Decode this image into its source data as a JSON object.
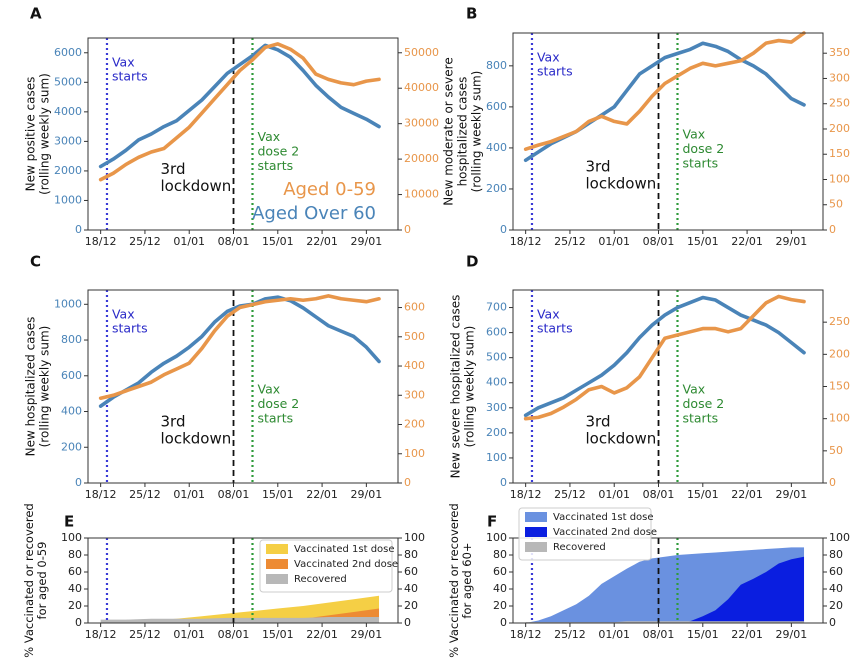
{
  "chart_data": [
    {
      "type": "line",
      "panel_letter": "A",
      "ylabel": "New positive cases\n(rolling weekly sum)",
      "xticks": [
        "18/12",
        "25/12",
        "01/01",
        "08/01",
        "15/01",
        "22/01",
        "29/01"
      ],
      "x_range": [
        -2,
        47
      ],
      "ylim_left": [
        0,
        6500
      ],
      "yticks_left": [
        0,
        1000,
        2000,
        3000,
        4000,
        5000,
        6000
      ],
      "ylim_right": [
        0,
        54167
      ],
      "yticks_right": [
        0,
        10000,
        20000,
        30000,
        40000,
        50000
      ],
      "left_color": "#4a84b8",
      "right_color": "#e8964a",
      "annotations": {
        "vax_label": "Vax\nstarts",
        "vax_x": 1,
        "lockdown_label": "3rd\nlockdown",
        "lockdown_x": 21,
        "dose2_label": "Vax\ndose 2\nstarts",
        "dose2_x": 24
      },
      "legend": {
        "items": [
          {
            "label": "Aged 0-59",
            "color": "#e8964a"
          },
          {
            "label": "Aged Over 60",
            "color": "#4a84b8"
          }
        ]
      },
      "series": [
        {
          "group": "Aged Over 60",
          "axis": "left",
          "x": [
            0,
            2,
            4,
            6,
            8,
            10,
            12,
            14,
            16,
            18,
            20,
            22,
            24,
            26,
            28,
            30,
            32,
            34,
            36,
            38,
            40,
            42,
            44
          ],
          "y": [
            2150,
            2400,
            2700,
            3050,
            3250,
            3500,
            3700,
            4050,
            4400,
            4850,
            5300,
            5600,
            5900,
            6250,
            6100,
            5850,
            5400,
            4900,
            4500,
            4150,
            3950,
            3750,
            3500
          ]
        },
        {
          "group": "Aged 0-59",
          "axis": "right",
          "x": [
            0,
            2,
            4,
            6,
            8,
            10,
            12,
            14,
            16,
            18,
            20,
            22,
            24,
            26,
            28,
            30,
            32,
            34,
            36,
            38,
            40,
            42,
            44
          ],
          "y": [
            14200,
            16000,
            18500,
            20500,
            22000,
            23000,
            26000,
            29000,
            33000,
            37000,
            41000,
            45000,
            48000,
            51500,
            52500,
            51000,
            48500,
            44000,
            42500,
            41500,
            41000,
            42000,
            42500
          ]
        }
      ]
    },
    {
      "type": "line",
      "panel_letter": "B",
      "ylabel": "New moderate or severe\nhospitalized cases\n(rolling weekly sum)",
      "xticks": [
        "18/12",
        "25/12",
        "01/01",
        "08/01",
        "15/01",
        "22/01",
        "29/01"
      ],
      "x_range": [
        -2,
        47
      ],
      "ylim_left": [
        0,
        960
      ],
      "yticks_left": [
        0,
        200,
        400,
        600,
        800
      ],
      "ylim_right": [
        0,
        390
      ],
      "yticks_right": [
        0,
        50,
        100,
        150,
        200,
        250,
        300,
        350
      ],
      "left_color": "#4a84b8",
      "right_color": "#e8964a",
      "annotations": {
        "vax_label": "Vax\nstarts",
        "vax_x": 1,
        "lockdown_label": "3rd\nlockdown",
        "lockdown_x": 21,
        "dose2_label": "Vax\ndose 2\nstarts",
        "dose2_x": 24
      },
      "series": [
        {
          "group": "Aged Over 60",
          "axis": "left",
          "x": [
            0,
            2,
            4,
            6,
            8,
            10,
            12,
            14,
            16,
            18,
            20,
            22,
            24,
            26,
            28,
            30,
            32,
            34,
            36,
            38,
            40,
            42,
            44
          ],
          "y": [
            340,
            380,
            420,
            450,
            480,
            520,
            560,
            600,
            680,
            760,
            800,
            840,
            860,
            880,
            910,
            895,
            870,
            830,
            800,
            760,
            700,
            640,
            610
          ]
        },
        {
          "group": "Aged 0-59",
          "axis": "right",
          "x": [
            0,
            2,
            4,
            6,
            8,
            10,
            12,
            14,
            16,
            18,
            20,
            22,
            24,
            26,
            28,
            30,
            32,
            34,
            36,
            38,
            40,
            42,
            44
          ],
          "y": [
            160,
            168,
            175,
            185,
            195,
            215,
            225,
            215,
            210,
            235,
            265,
            290,
            305,
            320,
            330,
            325,
            330,
            335,
            350,
            370,
            375,
            372,
            390
          ]
        }
      ]
    },
    {
      "type": "line",
      "panel_letter": "C",
      "ylabel": "New hospitalized cases\n(rolling weekly sum)",
      "xticks": [
        "18/12",
        "25/12",
        "01/01",
        "08/01",
        "15/01",
        "22/01",
        "29/01"
      ],
      "x_range": [
        -2,
        47
      ],
      "ylim_left": [
        0,
        1080
      ],
      "yticks_left": [
        0,
        200,
        400,
        600,
        800,
        1000
      ],
      "ylim_right": [
        0,
        660
      ],
      "yticks_right": [
        0,
        100,
        200,
        300,
        400,
        500,
        600
      ],
      "left_color": "#4a84b8",
      "right_color": "#e8964a",
      "annotations": {
        "vax_label": "Vax\nstarts",
        "vax_x": 1,
        "lockdown_label": "3rd\nlockdown",
        "lockdown_x": 21,
        "dose2_label": "Vax\ndose 2\nstarts",
        "dose2_x": 24
      },
      "series": [
        {
          "group": "Aged Over 60",
          "axis": "left",
          "x": [
            0,
            2,
            4,
            6,
            8,
            10,
            12,
            14,
            16,
            18,
            20,
            22,
            24,
            26,
            28,
            30,
            32,
            34,
            36,
            38,
            40,
            42,
            44
          ],
          "y": [
            430,
            480,
            520,
            560,
            620,
            670,
            710,
            760,
            820,
            900,
            960,
            990,
            1000,
            1030,
            1040,
            1020,
            980,
            930,
            880,
            850,
            820,
            760,
            680
          ]
        },
        {
          "group": "Aged 0-59",
          "axis": "right",
          "x": [
            0,
            2,
            4,
            6,
            8,
            10,
            12,
            14,
            16,
            18,
            20,
            22,
            24,
            26,
            28,
            30,
            32,
            34,
            36,
            38,
            40,
            42,
            44
          ],
          "y": [
            290,
            300,
            315,
            330,
            345,
            370,
            390,
            410,
            460,
            520,
            570,
            600,
            610,
            620,
            625,
            630,
            625,
            630,
            640,
            630,
            625,
            620,
            630
          ]
        }
      ]
    },
    {
      "type": "line",
      "panel_letter": "D",
      "ylabel": "New severe hospitalized cases\n(rolling weekly sum)",
      "xticks": [
        "18/12",
        "25/12",
        "01/01",
        "08/01",
        "15/01",
        "22/01",
        "29/01"
      ],
      "x_range": [
        -2,
        47
      ],
      "ylim_left": [
        0,
        770
      ],
      "yticks_left": [
        0,
        100,
        200,
        300,
        400,
        500,
        600,
        700
      ],
      "ylim_right": [
        0,
        300
      ],
      "yticks_right": [
        0,
        50,
        100,
        150,
        200,
        250
      ],
      "left_color": "#4a84b8",
      "right_color": "#e8964a",
      "annotations": {
        "vax_label": "Vax\nstarts",
        "vax_x": 1,
        "lockdown_label": "3rd\nlockdown",
        "lockdown_x": 21,
        "dose2_label": "Vax\ndose 2\nstarts",
        "dose2_x": 24
      },
      "series": [
        {
          "group": "Aged Over 60",
          "axis": "left",
          "x": [
            0,
            2,
            4,
            6,
            8,
            10,
            12,
            14,
            16,
            18,
            20,
            22,
            24,
            26,
            28,
            30,
            32,
            34,
            36,
            38,
            40,
            42,
            44
          ],
          "y": [
            270,
            300,
            320,
            340,
            370,
            400,
            430,
            470,
            520,
            580,
            630,
            670,
            700,
            720,
            740,
            730,
            700,
            670,
            650,
            630,
            600,
            560,
            520
          ]
        },
        {
          "group": "Aged 0-59",
          "axis": "right",
          "x": [
            0,
            2,
            4,
            6,
            8,
            10,
            12,
            14,
            16,
            18,
            20,
            22,
            24,
            26,
            28,
            30,
            32,
            34,
            36,
            38,
            40,
            42,
            44
          ],
          "y": [
            100,
            102,
            108,
            118,
            130,
            145,
            150,
            140,
            148,
            165,
            195,
            225,
            230,
            235,
            240,
            240,
            235,
            240,
            260,
            280,
            290,
            285,
            282
          ]
        }
      ]
    },
    {
      "type": "area",
      "panel_letter": "E",
      "ylabel": "% Vaccinated or recovered\nfor aged 0-59",
      "xticks": [
        "18/12",
        "25/12",
        "01/01",
        "08/01",
        "15/01",
        "22/01",
        "29/01"
      ],
      "x_range": [
        -2,
        47
      ],
      "ylim": [
        0,
        100
      ],
      "yticks": [
        0,
        20,
        40,
        60,
        80,
        100
      ],
      "lines": {
        "vax_x": 1,
        "lockdown_x": 21,
        "dose2_x": 24
      },
      "legend": {
        "position": "top-right"
      },
      "series": [
        {
          "name": "Vaccinated 1st dose",
          "color": "#f5cf45",
          "x": [
            0,
            4,
            8,
            12,
            16,
            20,
            24,
            28,
            32,
            36,
            40,
            44
          ],
          "y": [
            1,
            2,
            3,
            5,
            8,
            11,
            14,
            17,
            20,
            24,
            28,
            32
          ]
        },
        {
          "name": "Vaccinated 2nd dose",
          "color": "#ed8b34",
          "x": [
            0,
            4,
            8,
            12,
            16,
            20,
            24,
            28,
            32,
            36,
            40,
            44
          ],
          "y": [
            0,
            0,
            0,
            0,
            0,
            0,
            0,
            2,
            5,
            9,
            13,
            17
          ]
        },
        {
          "name": "Recovered",
          "color": "#b8b8b8",
          "x": [
            0,
            4,
            8,
            12,
            16,
            20,
            24,
            28,
            32,
            36,
            40,
            44
          ],
          "y": [
            4,
            4,
            5,
            5,
            5,
            6,
            6,
            6,
            6,
            7,
            7,
            7
          ]
        }
      ]
    },
    {
      "type": "area",
      "panel_letter": "F",
      "ylabel": "% Vaccinated or recovered\nfor aged 60+",
      "xticks": [
        "18/12",
        "25/12",
        "01/01",
        "08/01",
        "15/01",
        "22/01",
        "29/01"
      ],
      "x_range": [
        -2,
        47
      ],
      "ylim": [
        0,
        100
      ],
      "yticks": [
        0,
        20,
        40,
        60,
        80,
        100
      ],
      "lines": {
        "vax_x": 1,
        "lockdown_x": 21,
        "dose2_x": 24
      },
      "legend": {
        "position": "top-left"
      },
      "series": [
        {
          "name": "Vaccinated 1st dose",
          "color": "#6a91e0",
          "x": [
            0,
            2,
            4,
            6,
            8,
            10,
            12,
            14,
            16,
            18,
            20,
            22,
            24,
            26,
            28,
            30,
            32,
            34,
            36,
            38,
            40,
            42,
            44
          ],
          "y": [
            0,
            3,
            8,
            15,
            22,
            32,
            46,
            55,
            64,
            72,
            76,
            78,
            80,
            81,
            82,
            83,
            84,
            85,
            86,
            87,
            88,
            89,
            89
          ]
        },
        {
          "name": "Vaccinated 2nd dose",
          "color": "#0a1ee0",
          "x": [
            0,
            2,
            4,
            6,
            8,
            10,
            12,
            14,
            16,
            18,
            20,
            22,
            24,
            26,
            28,
            30,
            32,
            34,
            36,
            38,
            40,
            42,
            44
          ],
          "y": [
            0,
            0,
            0,
            0,
            0,
            0,
            0,
            0,
            0,
            0,
            0,
            0,
            0,
            2,
            8,
            15,
            28,
            45,
            52,
            60,
            70,
            75,
            78
          ]
        },
        {
          "name": "Recovered",
          "color": "#b8b8b8",
          "x": [
            0,
            2,
            4,
            6,
            8,
            10,
            12,
            14,
            16,
            18,
            20,
            22,
            24,
            26,
            28,
            30,
            32,
            34,
            36,
            38,
            40,
            42,
            44
          ],
          "y": [
            1,
            1,
            1,
            1,
            1,
            1,
            1,
            1,
            2,
            2,
            2,
            2,
            2,
            2,
            2,
            2,
            2,
            2,
            2,
            2,
            2,
            2,
            2
          ]
        }
      ]
    }
  ]
}
